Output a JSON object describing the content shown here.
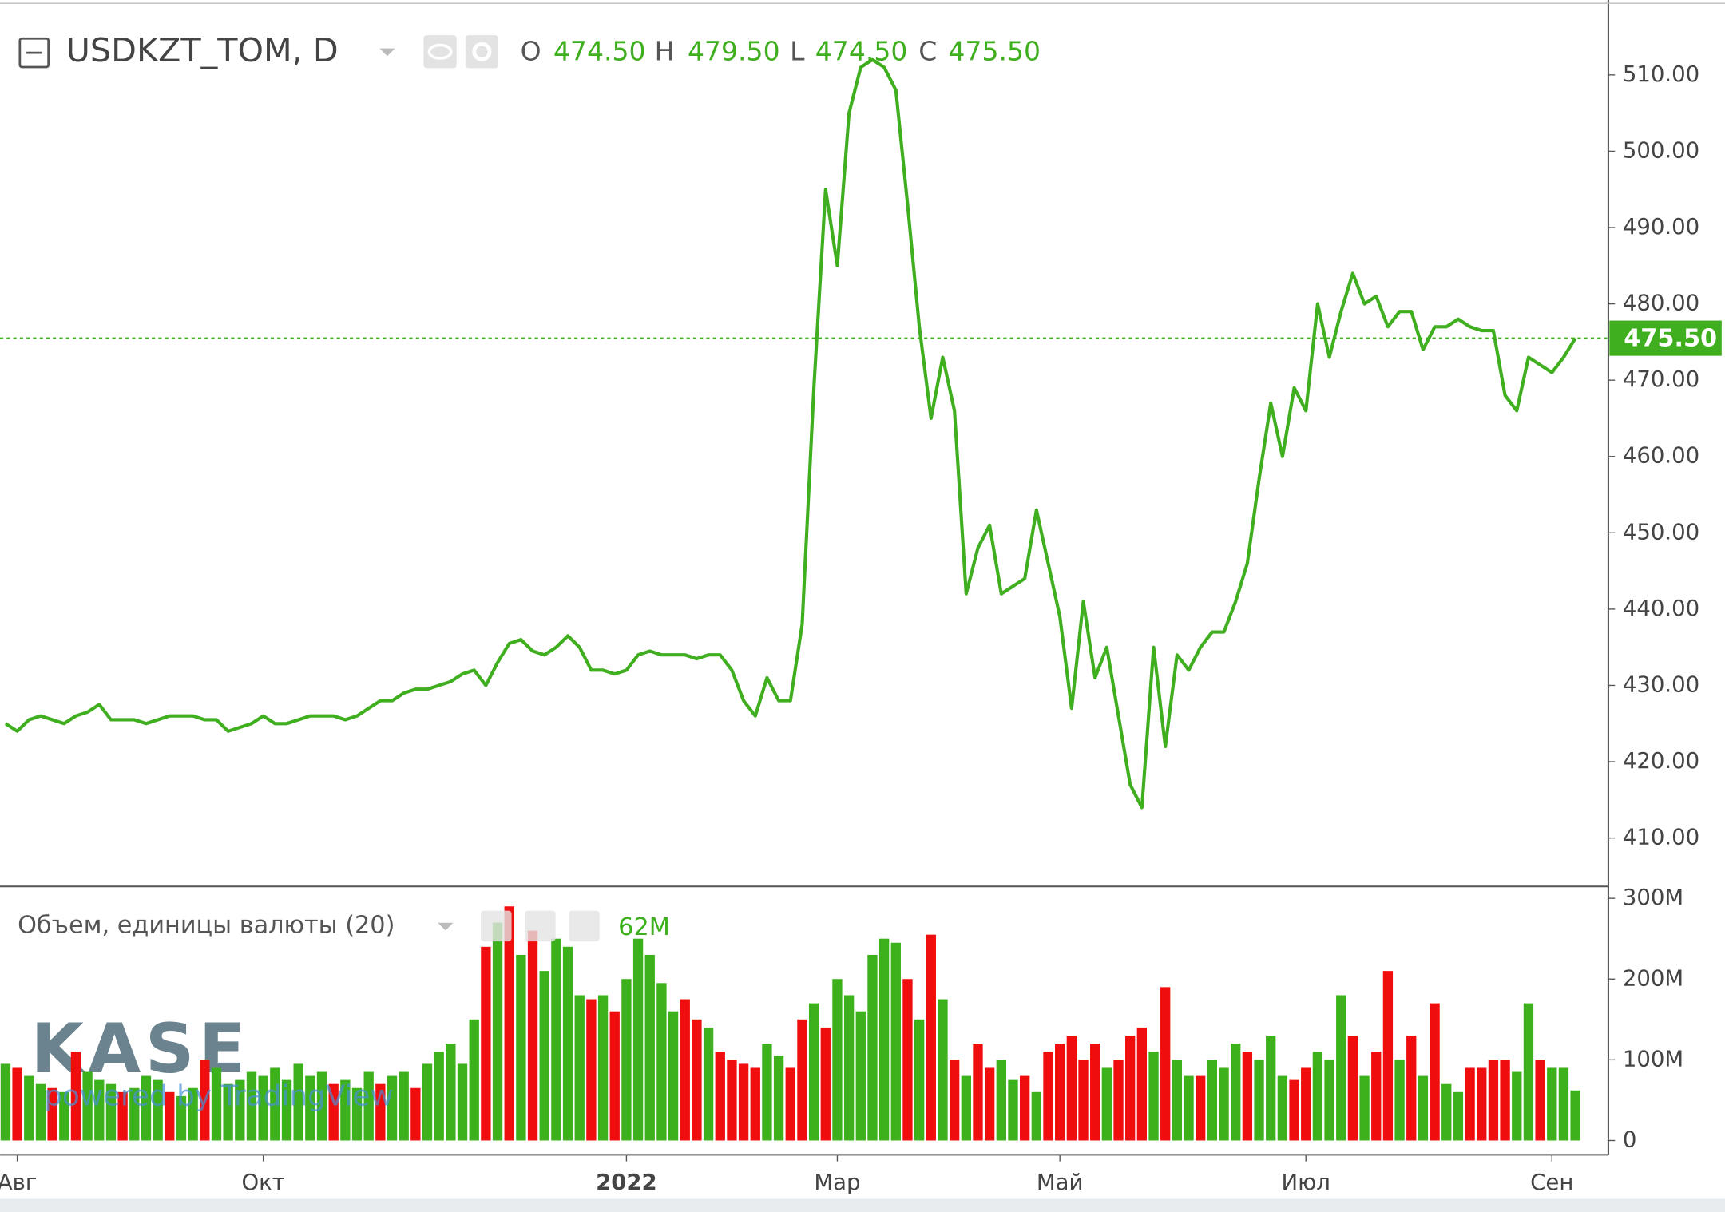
{
  "chart_data": [
    {
      "type": "line",
      "title": "USDKZT_TOM, D",
      "color": "#3fae1f",
      "ohlc": {
        "labels": [
          "O",
          "H",
          "L",
          "C"
        ],
        "values": [
          474.5,
          479.5,
          474.5,
          475.5
        ],
        "value_labels": [
          "474.50",
          "479.50",
          "474.50",
          "475.50"
        ]
      },
      "last_value": 475.5,
      "last_value_label": "475.50",
      "values": [
        425,
        424,
        425.5,
        426,
        425.5,
        425,
        426,
        426.5,
        427.5,
        425.5,
        425.5,
        425.5,
        425,
        425.5,
        426,
        426,
        426,
        425.5,
        425.5,
        424,
        424.5,
        425,
        426,
        425,
        425,
        425.5,
        426,
        426,
        426,
        425.5,
        426,
        427,
        428,
        428,
        429,
        429.5,
        429.5,
        430,
        430.5,
        431.5,
        432,
        430,
        433,
        435.5,
        436,
        434.5,
        434,
        435,
        436.5,
        435,
        432,
        432,
        431.5,
        432,
        434,
        434.5,
        434,
        434,
        434,
        433.5,
        434,
        434,
        432,
        428,
        426,
        431,
        428,
        428,
        438,
        469,
        495,
        485,
        505,
        511,
        512,
        511,
        508,
        493,
        477,
        465,
        473,
        466,
        442,
        448,
        451,
        442,
        443,
        444,
        453,
        446,
        439,
        427,
        441,
        431,
        435,
        426,
        417,
        414,
        435,
        422,
        434,
        432,
        435,
        437,
        437,
        441,
        446,
        457,
        467,
        460,
        469,
        466,
        480,
        473,
        479,
        484,
        480,
        481,
        477,
        479,
        479,
        474,
        477,
        477,
        478,
        477,
        476.5,
        476.5,
        468,
        466,
        473,
        472,
        471,
        473,
        475.5
      ],
      "ylim": [
        403.8,
        519.1
      ],
      "yticks": [
        {
          "value": 410,
          "label": "410.00"
        },
        {
          "value": 420,
          "label": "420.00"
        },
        {
          "value": 430,
          "label": "430.00"
        },
        {
          "value": 440,
          "label": "440.00"
        },
        {
          "value": 450,
          "label": "450.00"
        },
        {
          "value": 460,
          "label": "460.00"
        },
        {
          "value": 470,
          "label": "470.00"
        },
        {
          "value": 480,
          "label": "480.00"
        },
        {
          "value": 490,
          "label": "490.00"
        },
        {
          "value": 500,
          "label": "500.00"
        },
        {
          "value": 510,
          "label": "510.00"
        }
      ],
      "grid": true
    },
    {
      "type": "bar",
      "title": "Объем, единицы валюты (20)",
      "last_value": 62,
      "last_value_label": "62M",
      "watermark": {
        "logo": "KASE",
        "text": "powered by TradingView"
      },
      "categories": [
        null,
        "Авг",
        null,
        null,
        null,
        null,
        null,
        null,
        null,
        null,
        null,
        null,
        null,
        null,
        null,
        null,
        null,
        null,
        null,
        null,
        null,
        null,
        "Окт",
        null,
        null,
        null,
        null,
        null,
        null,
        null,
        null,
        null,
        null,
        null,
        null,
        null,
        null,
        null,
        null,
        null,
        null,
        null,
        null,
        null,
        null,
        null,
        null,
        null,
        null,
        null,
        null,
        null,
        null,
        "2022",
        null,
        null,
        null,
        null,
        null,
        null,
        null,
        null,
        null,
        null,
        null,
        null,
        null,
        null,
        null,
        null,
        null,
        "Мар",
        null,
        null,
        null,
        null,
        null,
        null,
        null,
        null,
        null,
        null,
        null,
        null,
        null,
        null,
        null,
        null,
        null,
        null,
        "Май",
        null,
        null,
        null,
        null,
        null,
        null,
        null,
        null,
        null,
        null,
        null,
        null,
        null,
        null,
        null,
        null,
        null,
        null,
        null,
        null,
        "Июл",
        null,
        null,
        null,
        null,
        null,
        null,
        null,
        null,
        null,
        null,
        null,
        null,
        null,
        null,
        null,
        null,
        null,
        null,
        null,
        null,
        "Сен",
        null,
        null
      ],
      "values": [
        95,
        90,
        80,
        70,
        65,
        60,
        110,
        85,
        75,
        70,
        60,
        65,
        80,
        75,
        60,
        55,
        65,
        100,
        90,
        70,
        75,
        85,
        80,
        90,
        75,
        95,
        80,
        85,
        70,
        75,
        65,
        85,
        70,
        80,
        85,
        65,
        95,
        110,
        120,
        95,
        150,
        240,
        270,
        290,
        230,
        260,
        210,
        250,
        240,
        180,
        175,
        180,
        160,
        200,
        250,
        230,
        195,
        160,
        175,
        150,
        140,
        110,
        100,
        95,
        90,
        120,
        105,
        90,
        150,
        170,
        140,
        200,
        180,
        160,
        230,
        250,
        245,
        200,
        150,
        255,
        175,
        100,
        80,
        120,
        90,
        100,
        75,
        80,
        60,
        110,
        120,
        130,
        100,
        120,
        90,
        100,
        130,
        140,
        110,
        190,
        100,
        80,
        80,
        100,
        90,
        120,
        110,
        100,
        130,
        80,
        75,
        90,
        110,
        100,
        180,
        130,
        80,
        110,
        210,
        100,
        130,
        80,
        170,
        70,
        60,
        90,
        90,
        100,
        100,
        85,
        170,
        100,
        90,
        90,
        62
      ],
      "colors": [
        "#3cb11c",
        "#f00d0d",
        "#3cb11c",
        "#3cb11c",
        "#f00d0d",
        "#3cb11c",
        "#f00d0d",
        "#3cb11c",
        "#3cb11c",
        "#3cb11c",
        "#f00d0d",
        "#3cb11c",
        "#3cb11c",
        "#3cb11c",
        "#f00d0d",
        "#3cb11c",
        "#3cb11c",
        "#f00d0d",
        "#3cb11c",
        "#3cb11c",
        "#3cb11c",
        "#3cb11c",
        "#3cb11c",
        "#3cb11c",
        "#3cb11c",
        "#3cb11c",
        "#3cb11c",
        "#3cb11c",
        "#f00d0d",
        "#3cb11c",
        "#3cb11c",
        "#3cb11c",
        "#f00d0d",
        "#3cb11c",
        "#3cb11c",
        "#f00d0d",
        "#3cb11c",
        "#3cb11c",
        "#3cb11c",
        "#3cb11c",
        "#3cb11c",
        "#f00d0d",
        "#3cb11c",
        "#f00d0d",
        "#3cb11c",
        "#f00d0d",
        "#3cb11c",
        "#3cb11c",
        "#3cb11c",
        "#3cb11c",
        "#f00d0d",
        "#3cb11c",
        "#f00d0d",
        "#3cb11c",
        "#3cb11c",
        "#3cb11c",
        "#3cb11c",
        "#3cb11c",
        "#f00d0d",
        "#f00d0d",
        "#3cb11c",
        "#f00d0d",
        "#f00d0d",
        "#f00d0d",
        "#f00d0d",
        "#3cb11c",
        "#3cb11c",
        "#f00d0d",
        "#f00d0d",
        "#3cb11c",
        "#f00d0d",
        "#3cb11c",
        "#3cb11c",
        "#3cb11c",
        "#3cb11c",
        "#3cb11c",
        "#3cb11c",
        "#f00d0d",
        "#3cb11c",
        "#f00d0d",
        "#3cb11c",
        "#f00d0d",
        "#3cb11c",
        "#f00d0d",
        "#f00d0d",
        "#3cb11c",
        "#3cb11c",
        "#f00d0d",
        "#3cb11c",
        "#f00d0d",
        "#f00d0d",
        "#f00d0d",
        "#f00d0d",
        "#f00d0d",
        "#3cb11c",
        "#f00d0d",
        "#f00d0d",
        "#f00d0d",
        "#3cb11c",
        "#f00d0d",
        "#3cb11c",
        "#3cb11c",
        "#f00d0d",
        "#3cb11c",
        "#3cb11c",
        "#3cb11c",
        "#f00d0d",
        "#3cb11c",
        "#3cb11c",
        "#3cb11c",
        "#f00d0d",
        "#f00d0d",
        "#3cb11c",
        "#3cb11c",
        "#3cb11c",
        "#f00d0d",
        "#3cb11c",
        "#f00d0d",
        "#f00d0d",
        "#3cb11c",
        "#f00d0d",
        "#3cb11c",
        "#f00d0d",
        "#3cb11c",
        "#3cb11c",
        "#f00d0d",
        "#f00d0d",
        "#f00d0d",
        "#f00d0d",
        "#3cb11c",
        "#3cb11c",
        "#f00d0d",
        "#3cb11c",
        "#3cb11c",
        "#3cb11c"
      ],
      "ylim": [
        -17.7,
        312
      ],
      "yticks": [
        0,
        {
          "value": 100,
          "label": "100M"
        },
        {
          "value": 200,
          "label": "200M"
        },
        {
          "value": 300,
          "label": "300M"
        }
      ]
    }
  ]
}
